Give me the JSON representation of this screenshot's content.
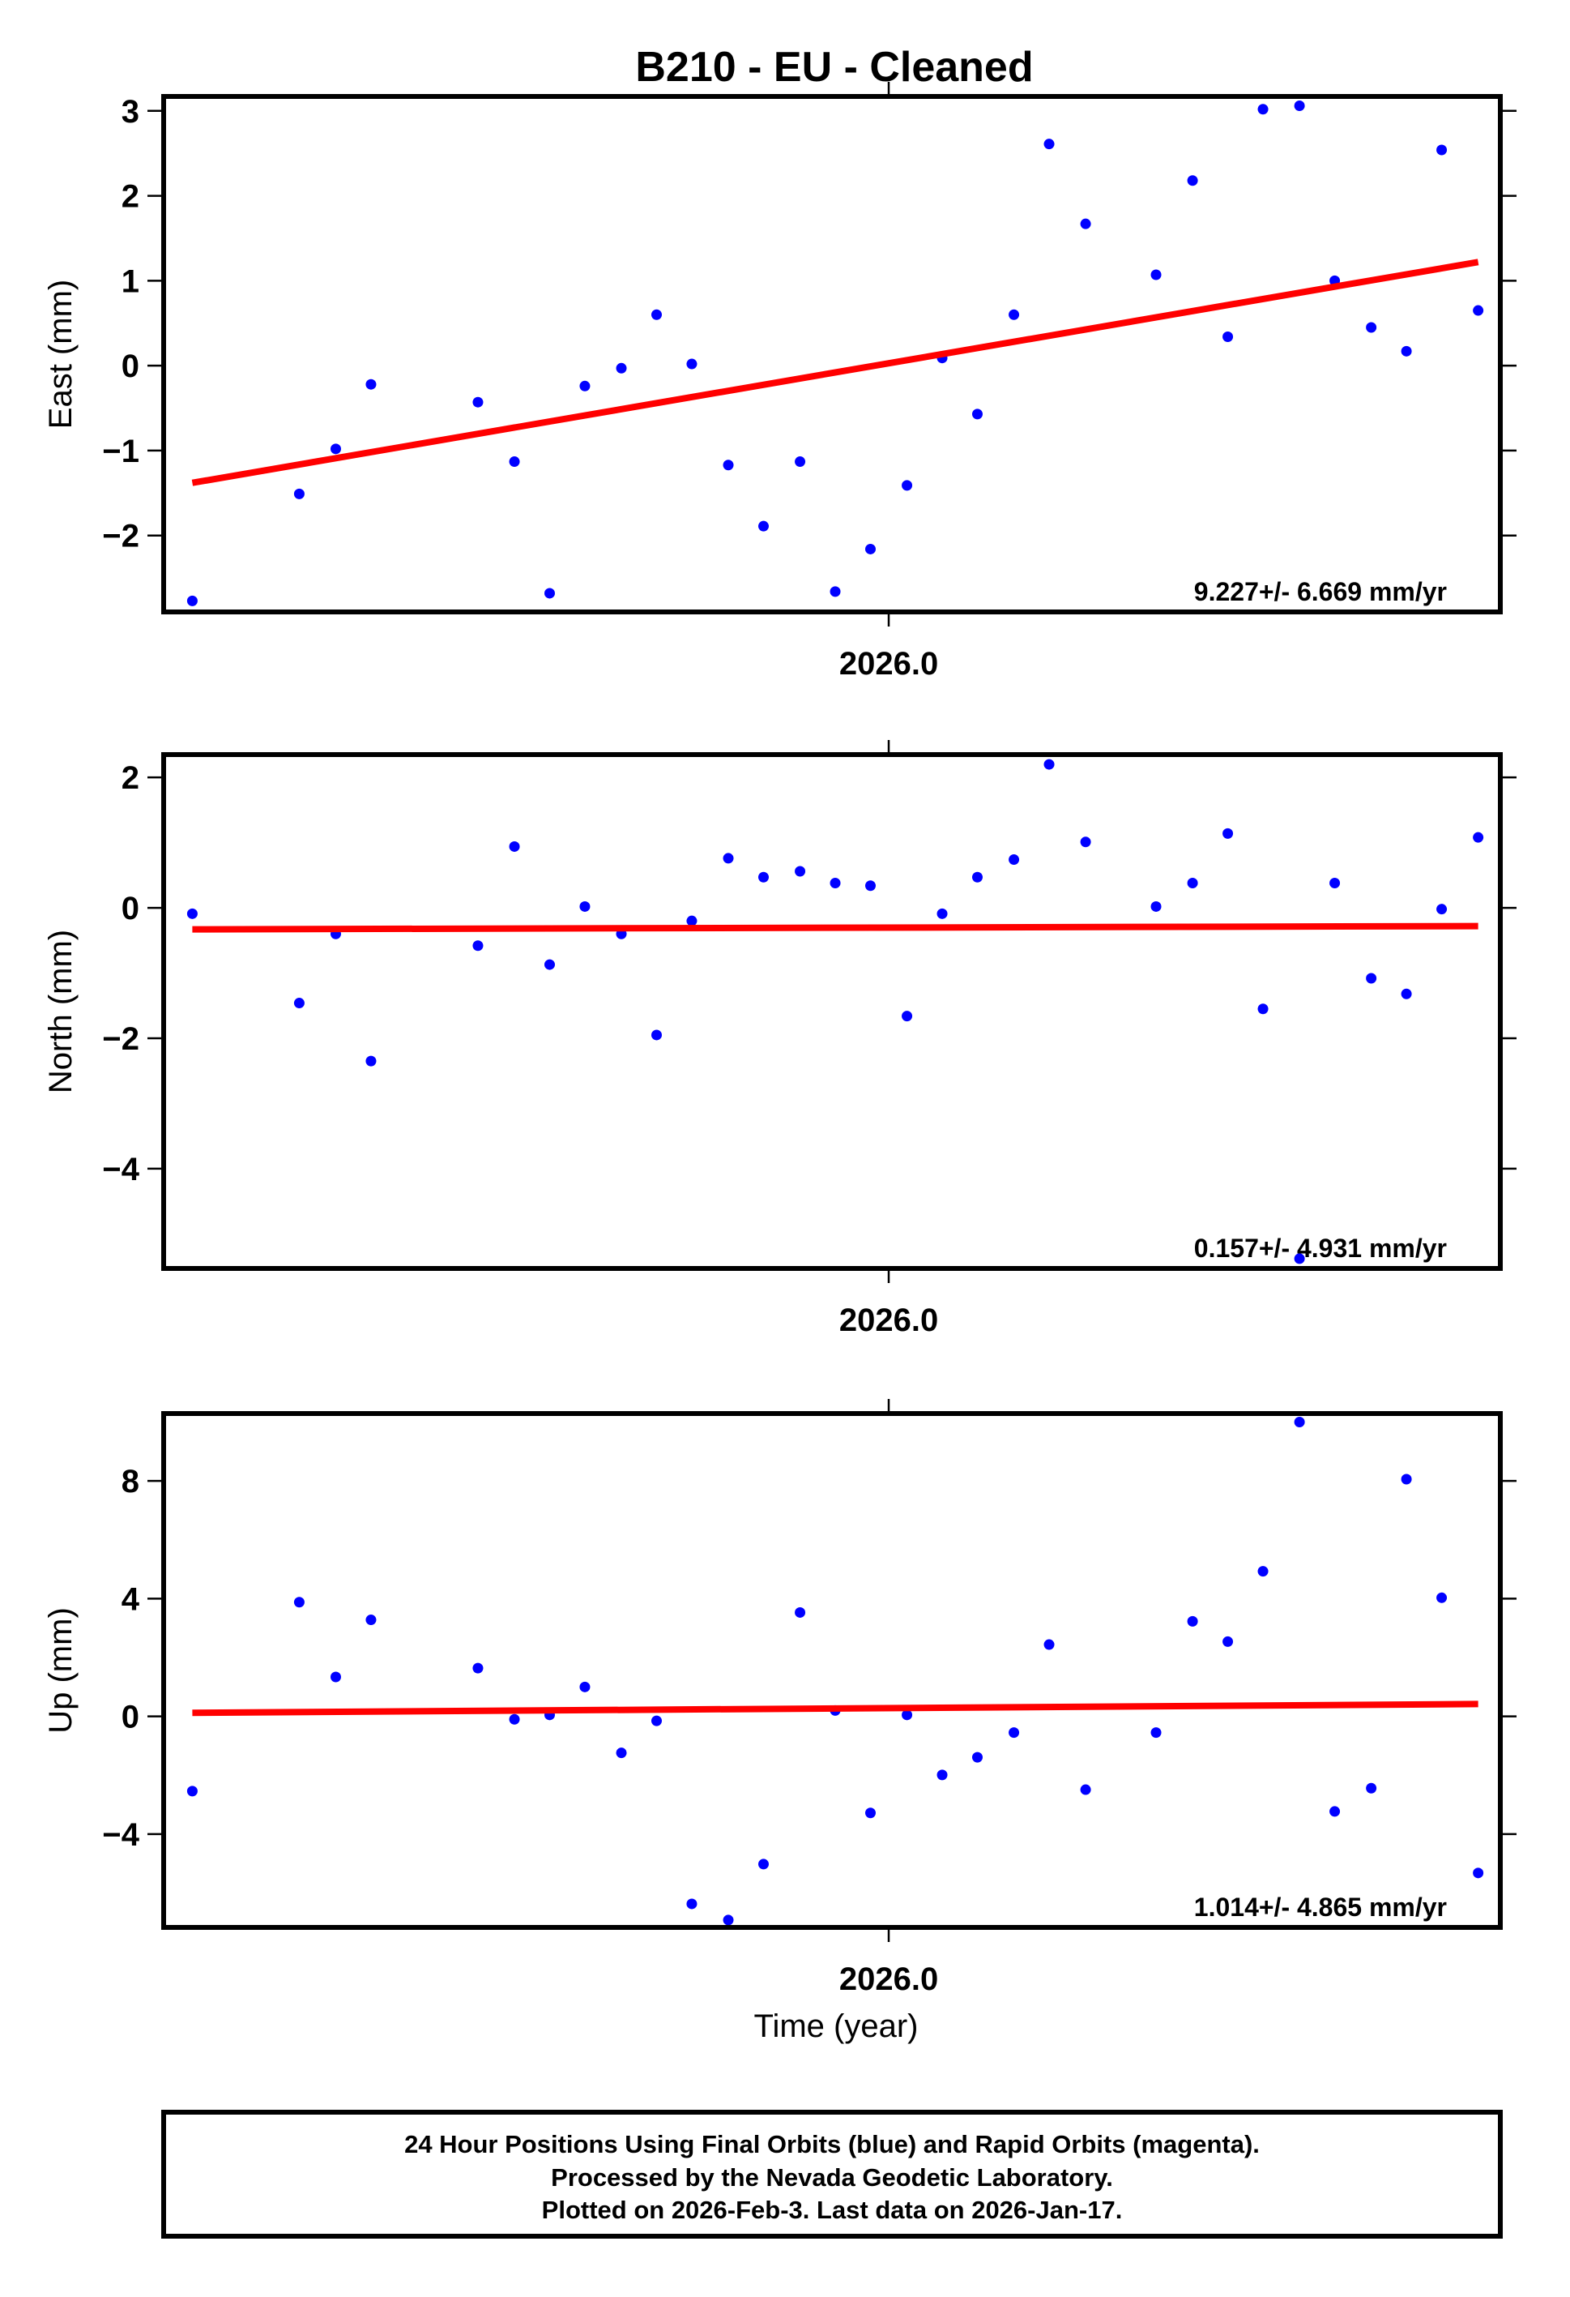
{
  "title": "B210  - EU - Cleaned",
  "colors": {
    "points": "#0000ff",
    "trend": "#ff0000",
    "frame": "#000000"
  },
  "chart_data": [
    {
      "type": "scatter",
      "name": "east",
      "ylabel": "East (mm)",
      "xlabel": "",
      "xtick_label": "2026.0",
      "xtick_value": 2026.0,
      "yticks": [
        3,
        2,
        1,
        0,
        -1,
        -2
      ],
      "ytick_labels": [
        "3",
        "2",
        "1",
        "0",
        "−1",
        "−2"
      ],
      "ylim": [
        -2.9,
        3.17
      ],
      "xlim": [
        2025.9444,
        2026.0469
      ],
      "rate_label": "9.227+/- 6.669 mm/yr",
      "x": [
        2025.9466,
        2025.9548,
        2025.9576,
        2025.9603,
        2025.9685,
        2025.9713,
        2025.974,
        2025.9767,
        2025.9795,
        2025.9822,
        2025.9849,
        2025.9877,
        2025.9904,
        2025.9932,
        2025.9959,
        2025.9986,
        2026.0014,
        2026.0041,
        2026.0068,
        2026.0096,
        2026.0123,
        2026.0151,
        2026.0205,
        2026.0233,
        2026.026,
        2026.0287,
        2026.0315,
        2026.0342,
        2026.037,
        2026.0397,
        2026.0424,
        2026.0452
      ],
      "y": [
        -2.77,
        -1.51,
        -0.98,
        -0.22,
        -0.43,
        -1.13,
        -2.68,
        -0.24,
        -0.03,
        0.6,
        0.02,
        -1.17,
        -1.89,
        -1.13,
        -2.66,
        -2.16,
        -1.41,
        0.09,
        -0.57,
        0.6,
        2.61,
        1.67,
        1.07,
        2.18,
        0.34,
        3.02,
        3.06,
        1.0,
        0.45,
        0.17,
        2.54,
        0.65
      ],
      "trend": {
        "x": [
          2025.9466,
          2026.0452
        ],
        "y": [
          -1.38,
          1.22
        ]
      }
    },
    {
      "type": "scatter",
      "name": "north",
      "ylabel": "North (mm)",
      "xlabel": "",
      "xtick_label": "2026.0",
      "xtick_value": 2026.0,
      "yticks": [
        2,
        0,
        -2,
        -4
      ],
      "ytick_labels": [
        "2",
        "0",
        "−2",
        "−4"
      ],
      "ylim": [
        -5.53,
        2.35
      ],
      "xlim": [
        2025.9444,
        2026.0469
      ],
      "rate_label": "0.157+/- 4.931 mm/yr",
      "x": [
        2025.9466,
        2025.9548,
        2025.9576,
        2025.9603,
        2025.9685,
        2025.9713,
        2025.974,
        2025.9767,
        2025.9795,
        2025.9822,
        2025.9849,
        2025.9877,
        2025.9904,
        2025.9932,
        2025.9959,
        2025.9986,
        2026.0014,
        2026.0041,
        2026.0068,
        2026.0096,
        2026.0123,
        2026.0151,
        2026.0205,
        2026.0233,
        2026.026,
        2026.0287,
        2026.0315,
        2026.0342,
        2026.037,
        2026.0397,
        2026.0424,
        2026.0452
      ],
      "y": [
        -0.09,
        -1.46,
        -0.4,
        -2.35,
        -0.58,
        0.94,
        -0.87,
        0.02,
        -0.4,
        -1.95,
        -0.2,
        0.76,
        0.47,
        0.56,
        0.38,
        0.34,
        -1.66,
        -0.09,
        0.47,
        0.74,
        2.2,
        1.01,
        0.02,
        0.38,
        1.14,
        -1.55,
        -5.38,
        0.38,
        -1.08,
        -1.32,
        -0.02,
        1.08
      ],
      "trend": {
        "x": [
          2025.9466,
          2026.0452
        ],
        "y": [
          -0.33,
          -0.28
        ]
      }
    },
    {
      "type": "scatter",
      "name": "up",
      "ylabel": "Up (mm)",
      "xlabel": "Time (year)",
      "xtick_label": "2026.0",
      "xtick_value": 2026.0,
      "yticks": [
        8,
        4,
        0,
        -4
      ],
      "ytick_labels": [
        "8",
        "4",
        "0",
        "−4"
      ],
      "ylim": [
        -7.17,
        10.29
      ],
      "xlim": [
        2025.9444,
        2026.0469
      ],
      "rate_label": "1.014+/- 4.865 mm/yr",
      "x": [
        2025.9466,
        2025.9548,
        2025.9576,
        2025.9603,
        2025.9685,
        2025.9713,
        2025.974,
        2025.9767,
        2025.9795,
        2025.9822,
        2025.9849,
        2025.9877,
        2025.9904,
        2025.9932,
        2025.9959,
        2025.9986,
        2026.0014,
        2026.0041,
        2026.0068,
        2026.0096,
        2026.0123,
        2026.0151,
        2026.0205,
        2026.0233,
        2026.026,
        2026.0287,
        2026.0315,
        2026.0342,
        2026.037,
        2026.0397,
        2026.0424,
        2026.0452
      ],
      "y": [
        -2.54,
        3.88,
        1.34,
        3.28,
        1.64,
        -0.1,
        0.05,
        1.0,
        -1.24,
        -0.15,
        -6.37,
        -6.92,
        -5.02,
        3.53,
        0.2,
        -3.28,
        0.05,
        -1.99,
        -1.39,
        -0.55,
        2.44,
        -2.49,
        -0.55,
        3.23,
        2.54,
        4.93,
        10.0,
        -3.23,
        -2.44,
        8.06,
        4.03,
        -5.32
      ],
      "trend": {
        "x": [
          2025.9466,
          2026.0452
        ],
        "y": [
          0.12,
          0.42
        ]
      }
    }
  ],
  "footer": {
    "line1": "24 Hour Positions Using Final Orbits (blue) and Rapid Orbits (magenta).",
    "line2": "Processed by the Nevada Geodetic Laboratory.",
    "line3": "Plotted on 2026-Feb-3. Last data on 2026-Jan-17."
  }
}
